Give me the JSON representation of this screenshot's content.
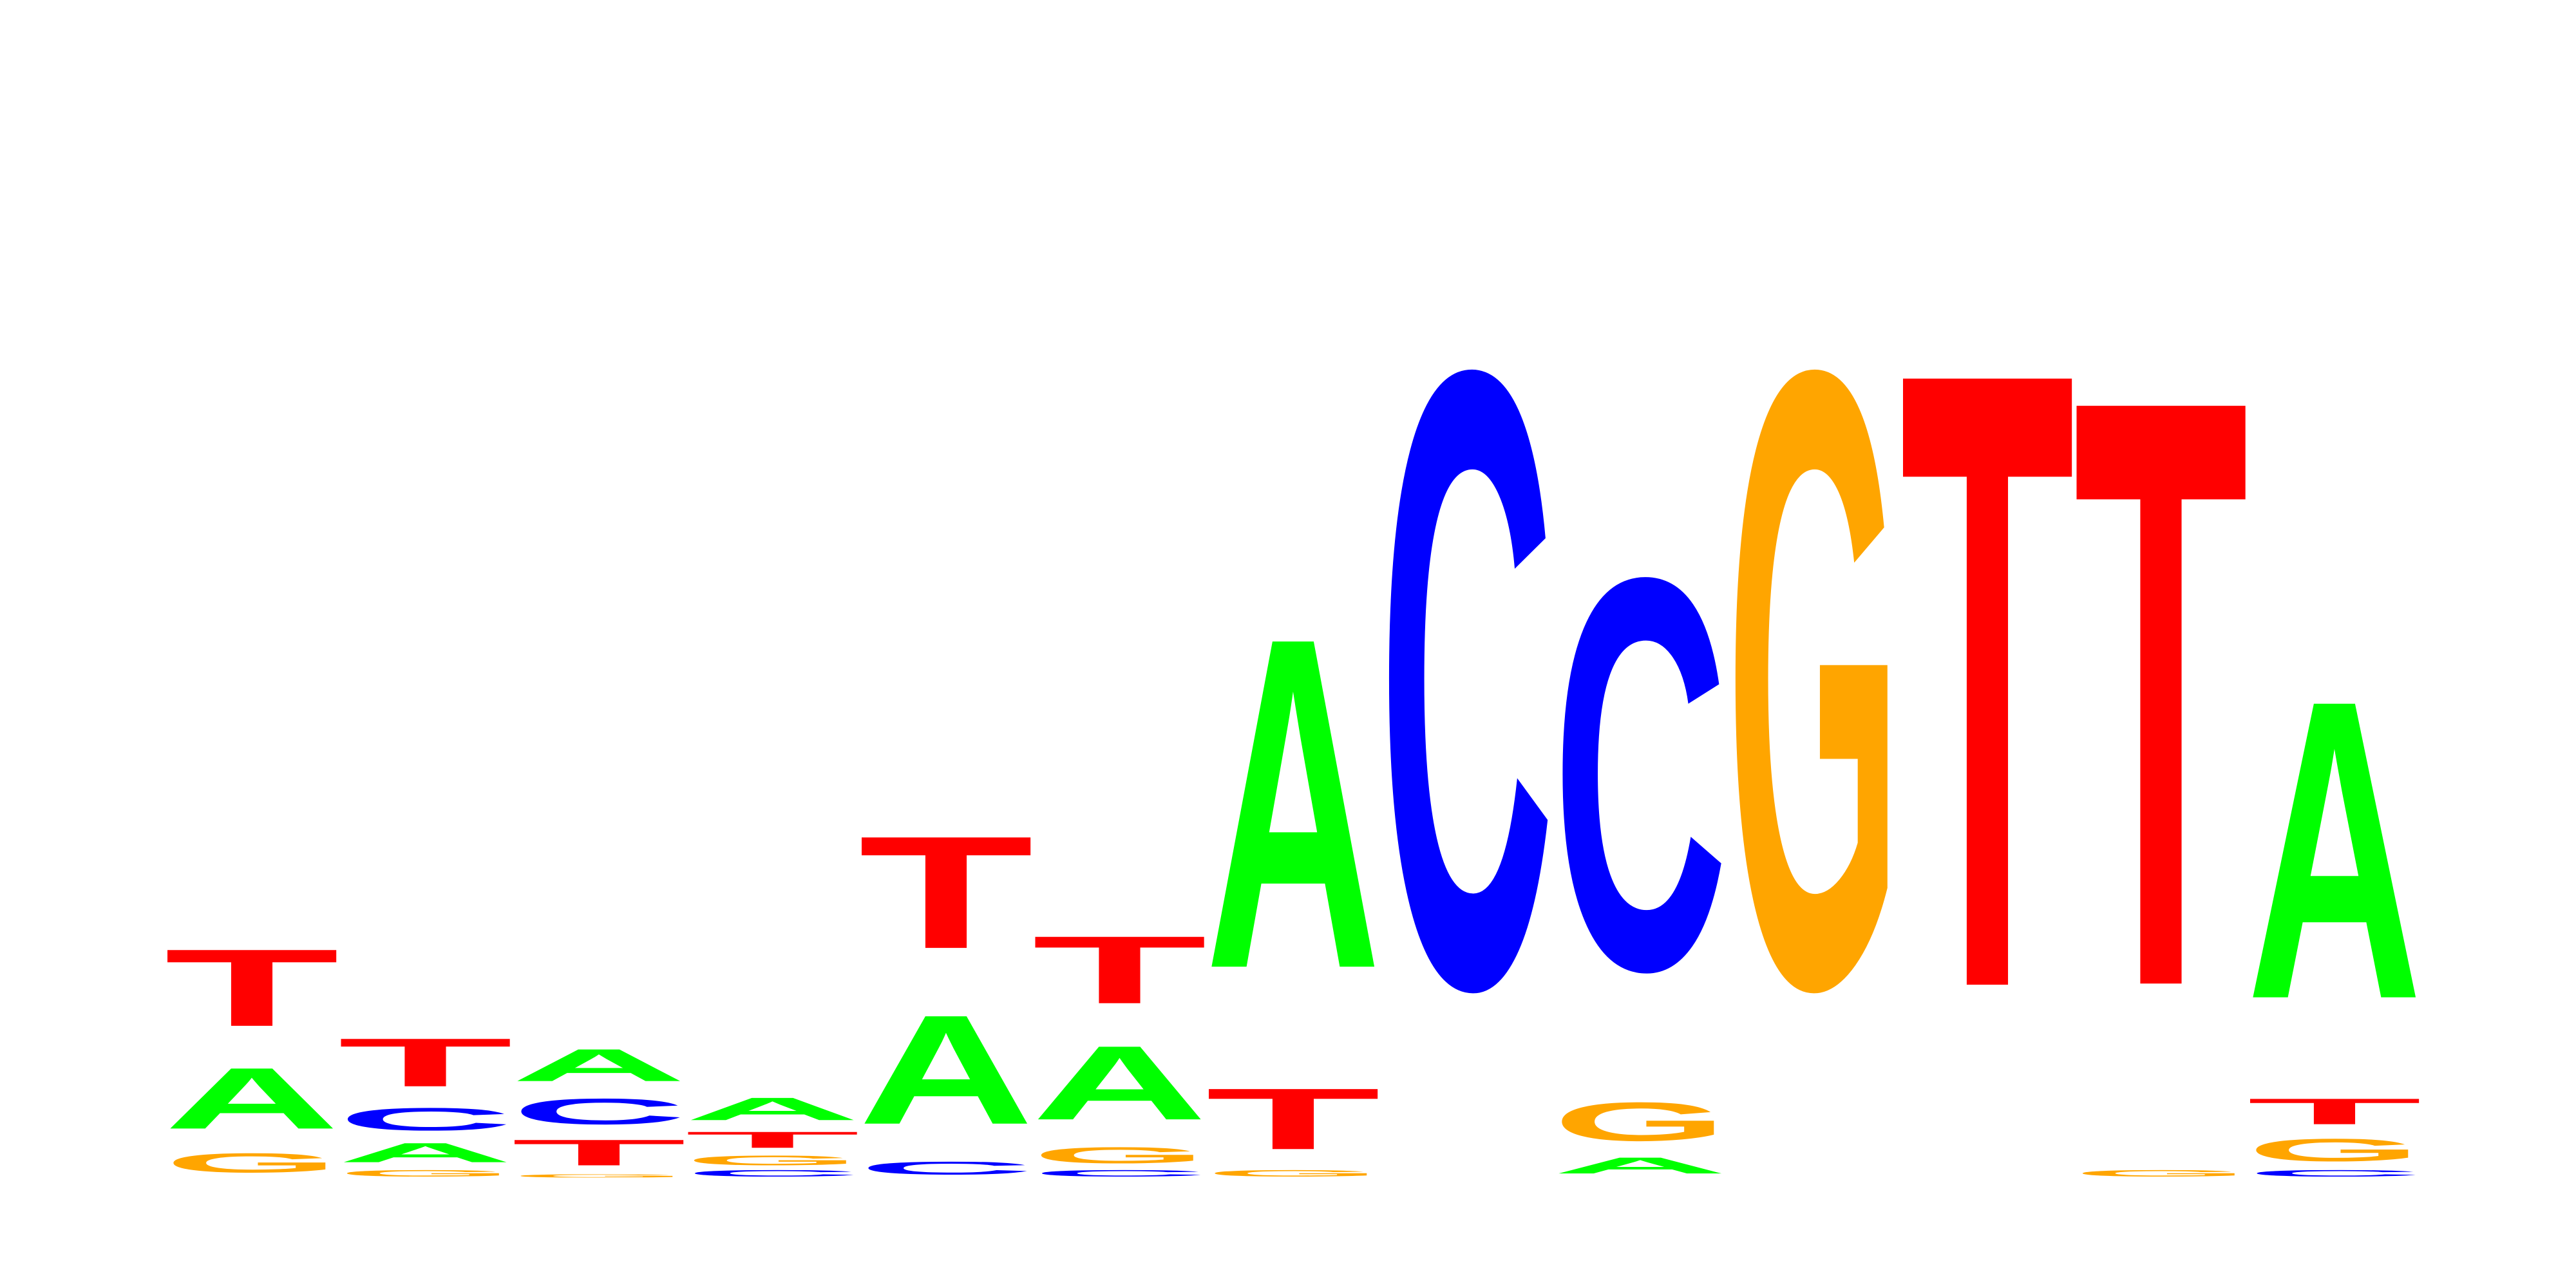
{
  "chart_data": {
    "type": "sequence-logo",
    "alphabet": [
      "A",
      "C",
      "G",
      "T"
    ],
    "colors": {
      "A": "#00ff00",
      "C": "#0000ff",
      "G": "#ffa500",
      "T": "#ff0000"
    },
    "axes_visible": false,
    "ylim": [
      0,
      2.0
    ],
    "positions": [
      [
        {
          "letter": "G",
          "bits": 0.06
        },
        {
          "letter": "A",
          "bits": 0.19
        },
        {
          "letter": "T",
          "bits": 0.24
        }
      ],
      [
        {
          "letter": "G",
          "bits": 0.02
        },
        {
          "letter": "A",
          "bits": 0.06
        },
        {
          "letter": "C",
          "bits": 0.07
        },
        {
          "letter": "T",
          "bits": 0.15
        }
      ],
      [
        {
          "letter": "G",
          "bits": 0.01
        },
        {
          "letter": "T",
          "bits": 0.08
        },
        {
          "letter": "C",
          "bits": 0.08
        },
        {
          "letter": "A",
          "bits": 0.1
        }
      ],
      [
        {
          "letter": "C",
          "bits": 0.02
        },
        {
          "letter": "G",
          "bits": 0.03
        },
        {
          "letter": "T",
          "bits": 0.05
        },
        {
          "letter": "A",
          "bits": 0.07
        }
      ],
      [
        {
          "letter": "C",
          "bits": 0.04
        },
        {
          "letter": "A",
          "bits": 0.34
        },
        {
          "letter": "T",
          "bits": 0.35
        }
      ],
      [
        {
          "letter": "C",
          "bits": 0.02
        },
        {
          "letter": "G",
          "bits": 0.05
        },
        {
          "letter": "A",
          "bits": 0.23
        },
        {
          "letter": "T",
          "bits": 0.21
        }
      ],
      [
        {
          "letter": "G",
          "bits": 0.02
        },
        {
          "letter": "T",
          "bits": 0.19
        },
        {
          "letter": "A",
          "bits": 1.03
        }
      ],
      [
        {
          "letter": "C",
          "bits": 1.92
        }
      ],
      [
        {
          "letter": "A",
          "bits": 0.05
        },
        {
          "letter": "G",
          "bits": 0.12
        },
        {
          "letter": "C",
          "bits": 1.22
        }
      ],
      [
        {
          "letter": "G",
          "bits": 1.92
        }
      ],
      [
        {
          "letter": "T",
          "bits": 1.92
        }
      ],
      [
        {
          "letter": "G",
          "bits": 0.02
        },
        {
          "letter": "T",
          "bits": 1.83
        }
      ],
      [
        {
          "letter": "C",
          "bits": 0.02
        },
        {
          "letter": "G",
          "bits": 0.07
        },
        {
          "letter": "T",
          "bits": 0.08
        },
        {
          "letter": "A",
          "bits": 0.93
        }
      ]
    ]
  }
}
